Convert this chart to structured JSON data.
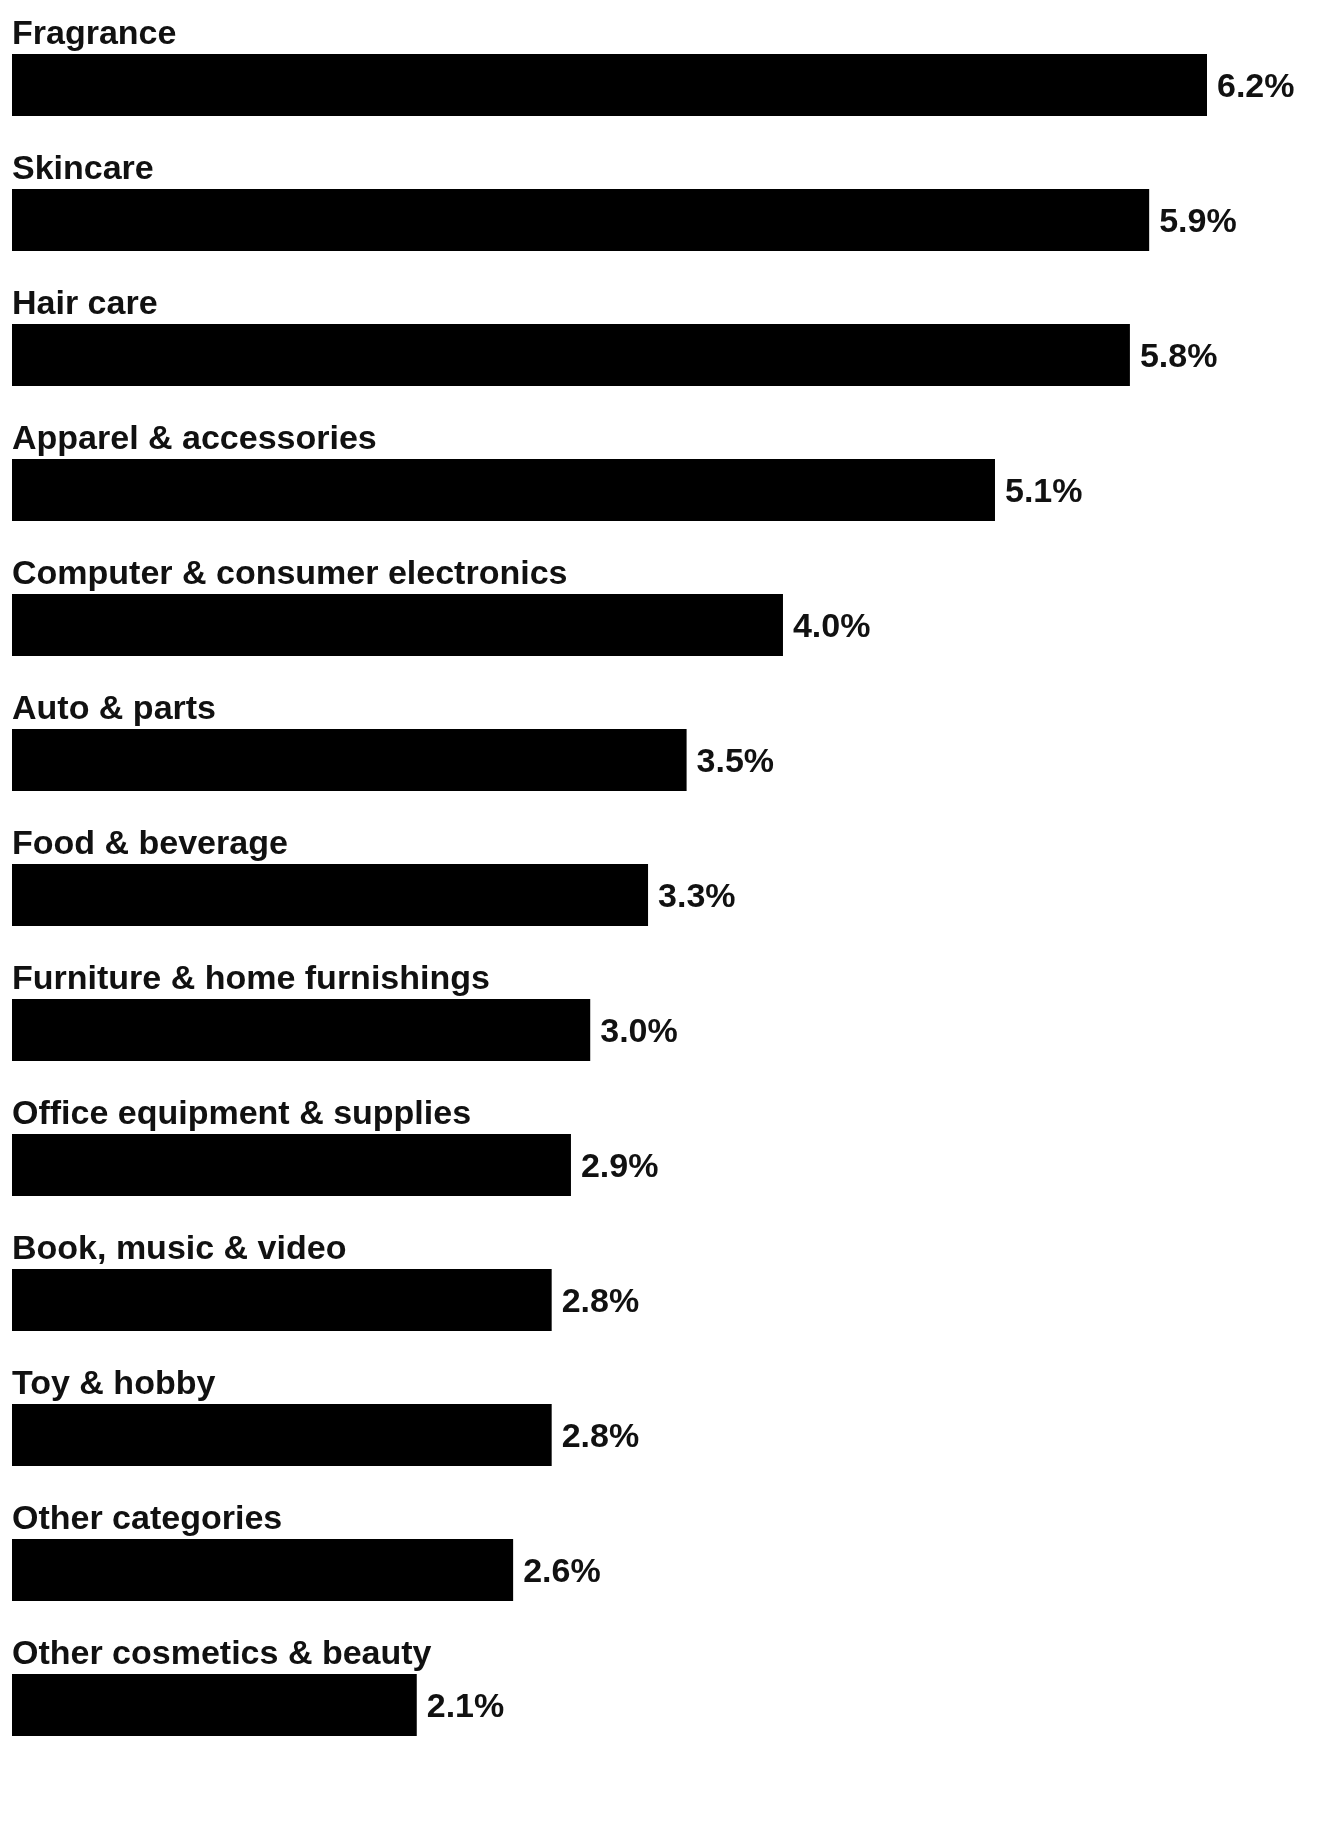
{
  "chart_data": {
    "type": "bar",
    "orientation": "horizontal",
    "color": "#000000",
    "data_labels": true,
    "categories": [
      "Fragrance",
      "Skincare",
      "Hair care",
      "Apparel & accessories",
      "Computer & consumer electronics",
      "Auto & parts",
      "Food & beverage",
      "Furniture & home furnishings",
      "Office equipment & supplies",
      "Book, music & video",
      "Toy & hobby",
      "Other categories",
      "Other cosmetics & beauty"
    ],
    "values": [
      6.2,
      5.9,
      5.8,
      5.1,
      4.0,
      3.5,
      3.3,
      3.0,
      2.9,
      2.8,
      2.8,
      2.6,
      2.1
    ],
    "value_labels": [
      "6.2%",
      "5.9%",
      "5.8%",
      "5.1%",
      "4.0%",
      "3.5%",
      "3.3%",
      "3.0%",
      "2.9%",
      "2.8%",
      "2.8%",
      "2.6%",
      "2.1%"
    ]
  }
}
